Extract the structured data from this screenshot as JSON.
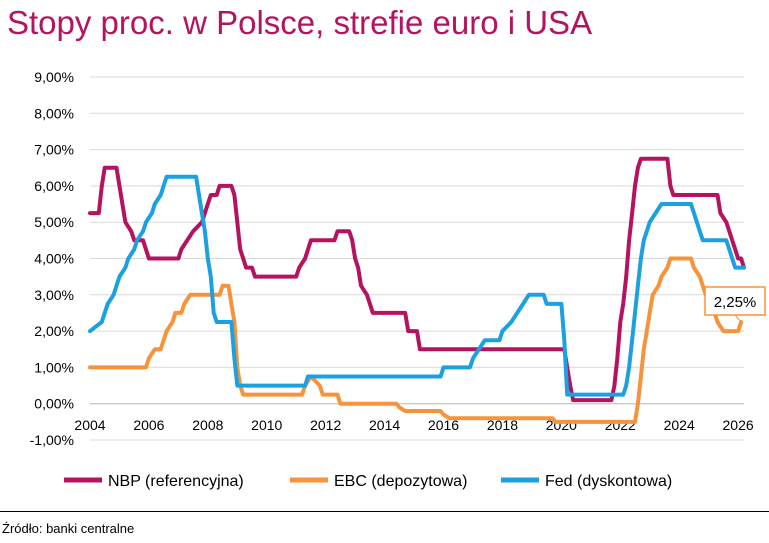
{
  "title": "Stopy proc. w Polsce, strefie euro i USA",
  "source": "Źródło: banki centralne",
  "colors": {
    "title": "#b5135f",
    "nbp": "#b5135f",
    "ecb": "#f7943b",
    "fed": "#1ba1e2",
    "grid": "#d9d9d9"
  },
  "chart_data": {
    "type": "line",
    "title": "Stopy proc. w Polsce, strefie euro i USA",
    "xlim": [
      2004,
      2026.2
    ],
    "ylim": [
      -1,
      9
    ],
    "y_ticks": [
      "-1,00%",
      "0,00%",
      "1,00%",
      "2,00%",
      "3,00%",
      "4,00%",
      "5,00%",
      "6,00%",
      "7,00%",
      "8,00%",
      "9,00%"
    ],
    "x_ticks": [
      "2004",
      "2006",
      "2008",
      "2010",
      "2012",
      "2014",
      "2016",
      "2018",
      "2020",
      "2022",
      "2024",
      "2026"
    ],
    "grid": true,
    "legend_position": "bottom",
    "callout": {
      "text": "2,25%",
      "x": 2026.1,
      "y": 2.25,
      "series": "EBC (depozytowa)"
    },
    "series": [
      {
        "name": "NBP (referencyjna)",
        "color": "#b5135f",
        "points": [
          [
            2004.0,
            5.25
          ],
          [
            2004.3,
            5.25
          ],
          [
            2004.4,
            6.0
          ],
          [
            2004.5,
            6.5
          ],
          [
            2004.9,
            6.5
          ],
          [
            2005.1,
            5.5
          ],
          [
            2005.2,
            5.0
          ],
          [
            2005.4,
            4.75
          ],
          [
            2005.5,
            4.5
          ],
          [
            2005.8,
            4.5
          ],
          [
            2006.0,
            4.0
          ],
          [
            2007.0,
            4.0
          ],
          [
            2007.1,
            4.25
          ],
          [
            2007.3,
            4.5
          ],
          [
            2007.5,
            4.75
          ],
          [
            2007.8,
            5.0
          ],
          [
            2007.9,
            5.25
          ],
          [
            2008.0,
            5.5
          ],
          [
            2008.1,
            5.75
          ],
          [
            2008.3,
            5.75
          ],
          [
            2008.4,
            6.0
          ],
          [
            2008.8,
            6.0
          ],
          [
            2008.9,
            5.75
          ],
          [
            2009.0,
            5.0
          ],
          [
            2009.1,
            4.25
          ],
          [
            2009.2,
            4.0
          ],
          [
            2009.3,
            3.75
          ],
          [
            2009.5,
            3.75
          ],
          [
            2009.6,
            3.5
          ],
          [
            2011.0,
            3.5
          ],
          [
            2011.1,
            3.75
          ],
          [
            2011.3,
            4.0
          ],
          [
            2011.4,
            4.25
          ],
          [
            2011.5,
            4.5
          ],
          [
            2012.3,
            4.5
          ],
          [
            2012.4,
            4.75
          ],
          [
            2012.8,
            4.75
          ],
          [
            2012.9,
            4.5
          ],
          [
            2013.0,
            4.0
          ],
          [
            2013.1,
            3.75
          ],
          [
            2013.2,
            3.25
          ],
          [
            2013.4,
            3.0
          ],
          [
            2013.5,
            2.75
          ],
          [
            2013.6,
            2.5
          ],
          [
            2014.7,
            2.5
          ],
          [
            2014.8,
            2.0
          ],
          [
            2015.1,
            2.0
          ],
          [
            2015.2,
            1.5
          ],
          [
            2020.1,
            1.5
          ],
          [
            2020.2,
            1.0
          ],
          [
            2020.3,
            0.5
          ],
          [
            2020.4,
            0.1
          ],
          [
            2021.7,
            0.1
          ],
          [
            2021.8,
            0.5
          ],
          [
            2021.9,
            1.25
          ],
          [
            2022.0,
            2.25
          ],
          [
            2022.1,
            2.75
          ],
          [
            2022.2,
            3.5
          ],
          [
            2022.3,
            4.5
          ],
          [
            2022.4,
            5.25
          ],
          [
            2022.5,
            6.0
          ],
          [
            2022.6,
            6.5
          ],
          [
            2022.7,
            6.75
          ],
          [
            2023.6,
            6.75
          ],
          [
            2023.7,
            6.0
          ],
          [
            2023.8,
            5.75
          ],
          [
            2025.3,
            5.75
          ],
          [
            2025.4,
            5.25
          ],
          [
            2025.6,
            5.0
          ],
          [
            2025.7,
            4.75
          ],
          [
            2025.8,
            4.5
          ],
          [
            2025.9,
            4.25
          ],
          [
            2026.0,
            4.0
          ],
          [
            2026.1,
            4.0
          ],
          [
            2026.2,
            3.75
          ]
        ]
      },
      {
        "name": "EBC (depozytowa)",
        "color": "#f7943b",
        "points": [
          [
            2004.0,
            1.0
          ],
          [
            2005.9,
            1.0
          ],
          [
            2006.0,
            1.25
          ],
          [
            2006.2,
            1.5
          ],
          [
            2006.4,
            1.5
          ],
          [
            2006.5,
            1.75
          ],
          [
            2006.6,
            2.0
          ],
          [
            2006.8,
            2.25
          ],
          [
            2006.9,
            2.5
          ],
          [
            2007.1,
            2.5
          ],
          [
            2007.2,
            2.75
          ],
          [
            2007.4,
            3.0
          ],
          [
            2008.4,
            3.0
          ],
          [
            2008.5,
            3.25
          ],
          [
            2008.7,
            3.25
          ],
          [
            2008.8,
            2.75
          ],
          [
            2008.9,
            2.25
          ],
          [
            2009.0,
            1.0
          ],
          [
            2009.1,
            0.5
          ],
          [
            2009.2,
            0.25
          ],
          [
            2011.2,
            0.25
          ],
          [
            2011.3,
            0.5
          ],
          [
            2011.5,
            0.75
          ],
          [
            2011.8,
            0.5
          ],
          [
            2011.9,
            0.25
          ],
          [
            2012.4,
            0.25
          ],
          [
            2012.5,
            0.0
          ],
          [
            2014.4,
            0.0
          ],
          [
            2014.5,
            -0.1
          ],
          [
            2014.7,
            -0.2
          ],
          [
            2015.9,
            -0.2
          ],
          [
            2016.0,
            -0.3
          ],
          [
            2016.2,
            -0.4
          ],
          [
            2019.7,
            -0.4
          ],
          [
            2019.8,
            -0.5
          ],
          [
            2022.5,
            -0.5
          ],
          [
            2022.6,
            0.0
          ],
          [
            2022.7,
            0.75
          ],
          [
            2022.8,
            1.5
          ],
          [
            2022.9,
            2.0
          ],
          [
            2023.0,
            2.5
          ],
          [
            2023.1,
            3.0
          ],
          [
            2023.3,
            3.25
          ],
          [
            2023.4,
            3.5
          ],
          [
            2023.6,
            3.75
          ],
          [
            2023.7,
            4.0
          ],
          [
            2024.4,
            4.0
          ],
          [
            2024.5,
            3.75
          ],
          [
            2024.7,
            3.5
          ],
          [
            2024.8,
            3.25
          ],
          [
            2024.9,
            3.0
          ],
          [
            2025.1,
            2.75
          ],
          [
            2025.2,
            2.5
          ],
          [
            2025.3,
            2.25
          ],
          [
            2025.5,
            2.0
          ],
          [
            2026.0,
            2.0
          ],
          [
            2026.1,
            2.25
          ]
        ]
      },
      {
        "name": "Fed (dyskontowa)",
        "color": "#1ba1e2",
        "points": [
          [
            2004.0,
            2.0
          ],
          [
            2004.4,
            2.25
          ],
          [
            2004.5,
            2.5
          ],
          [
            2004.6,
            2.75
          ],
          [
            2004.8,
            3.0
          ],
          [
            2004.9,
            3.25
          ],
          [
            2005.0,
            3.5
          ],
          [
            2005.2,
            3.75
          ],
          [
            2005.3,
            4.0
          ],
          [
            2005.5,
            4.25
          ],
          [
            2005.6,
            4.5
          ],
          [
            2005.8,
            4.75
          ],
          [
            2005.9,
            5.0
          ],
          [
            2006.1,
            5.25
          ],
          [
            2006.2,
            5.5
          ],
          [
            2006.4,
            5.75
          ],
          [
            2006.5,
            6.0
          ],
          [
            2006.6,
            6.25
          ],
          [
            2007.6,
            6.25
          ],
          [
            2007.7,
            5.75
          ],
          [
            2007.8,
            5.25
          ],
          [
            2007.9,
            4.75
          ],
          [
            2008.0,
            4.0
          ],
          [
            2008.1,
            3.5
          ],
          [
            2008.2,
            2.5
          ],
          [
            2008.3,
            2.25
          ],
          [
            2008.8,
            2.25
          ],
          [
            2008.9,
            1.25
          ],
          [
            2009.0,
            0.5
          ],
          [
            2011.3,
            0.5
          ],
          [
            2011.4,
            0.75
          ],
          [
            2015.9,
            0.75
          ],
          [
            2016.0,
            1.0
          ],
          [
            2016.9,
            1.0
          ],
          [
            2017.0,
            1.25
          ],
          [
            2017.2,
            1.5
          ],
          [
            2017.4,
            1.75
          ],
          [
            2017.9,
            1.75
          ],
          [
            2018.0,
            2.0
          ],
          [
            2018.3,
            2.25
          ],
          [
            2018.5,
            2.5
          ],
          [
            2018.7,
            2.75
          ],
          [
            2018.9,
            3.0
          ],
          [
            2019.4,
            3.0
          ],
          [
            2019.5,
            2.75
          ],
          [
            2020.0,
            2.75
          ],
          [
            2020.1,
            1.75
          ],
          [
            2020.2,
            0.25
          ],
          [
            2022.1,
            0.25
          ],
          [
            2022.2,
            0.5
          ],
          [
            2022.3,
            1.0
          ],
          [
            2022.4,
            1.75
          ],
          [
            2022.5,
            2.5
          ],
          [
            2022.6,
            3.25
          ],
          [
            2022.7,
            4.0
          ],
          [
            2022.8,
            4.5
          ],
          [
            2022.9,
            4.75
          ],
          [
            2023.0,
            5.0
          ],
          [
            2023.2,
            5.25
          ],
          [
            2023.4,
            5.5
          ],
          [
            2024.4,
            5.5
          ],
          [
            2024.6,
            5.0
          ],
          [
            2024.7,
            4.75
          ],
          [
            2024.8,
            4.5
          ],
          [
            2025.6,
            4.5
          ],
          [
            2025.7,
            4.25
          ],
          [
            2025.8,
            4.0
          ],
          [
            2025.9,
            3.75
          ],
          [
            2026.2,
            3.75
          ]
        ]
      }
    ]
  }
}
